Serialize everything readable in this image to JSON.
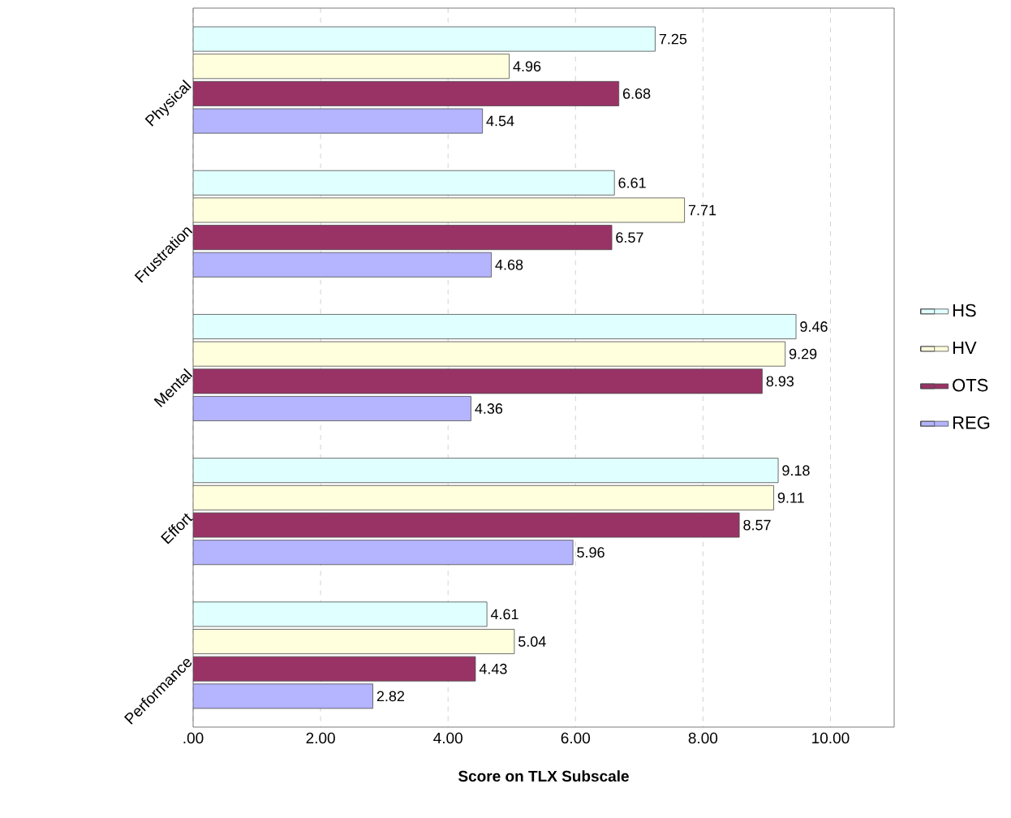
{
  "chart_data": {
    "type": "bar",
    "orientation": "horizontal",
    "xlabel": "Score on TLX Subscale",
    "categories": [
      "Physical",
      "Frustration",
      "Mental",
      "Effort",
      "Performance"
    ],
    "series": [
      {
        "name": "HS",
        "color": "#e0ffff",
        "values": [
          7.25,
          6.61,
          9.46,
          9.18,
          4.61
        ]
      },
      {
        "name": "HV",
        "color": "#ffffdd",
        "values": [
          4.96,
          7.71,
          9.29,
          9.11,
          5.04
        ]
      },
      {
        "name": "OTS",
        "color": "#993366",
        "values": [
          6.68,
          6.57,
          8.93,
          8.57,
          4.43
        ]
      },
      {
        "name": "REG",
        "color": "#b4b4ff",
        "values": [
          4.54,
          4.68,
          4.36,
          5.96,
          2.82
        ]
      }
    ],
    "xlim": [
      0,
      11
    ],
    "xticks": [
      {
        "value": 0,
        "label": ".00"
      },
      {
        "value": 2,
        "label": "2.00"
      },
      {
        "value": 4,
        "label": "4.00"
      },
      {
        "value": 6,
        "label": "6.00"
      },
      {
        "value": 8,
        "label": "8.00"
      },
      {
        "value": 10,
        "label": "10.00"
      }
    ],
    "grid": "x",
    "legend": "right",
    "data_labels": true
  }
}
